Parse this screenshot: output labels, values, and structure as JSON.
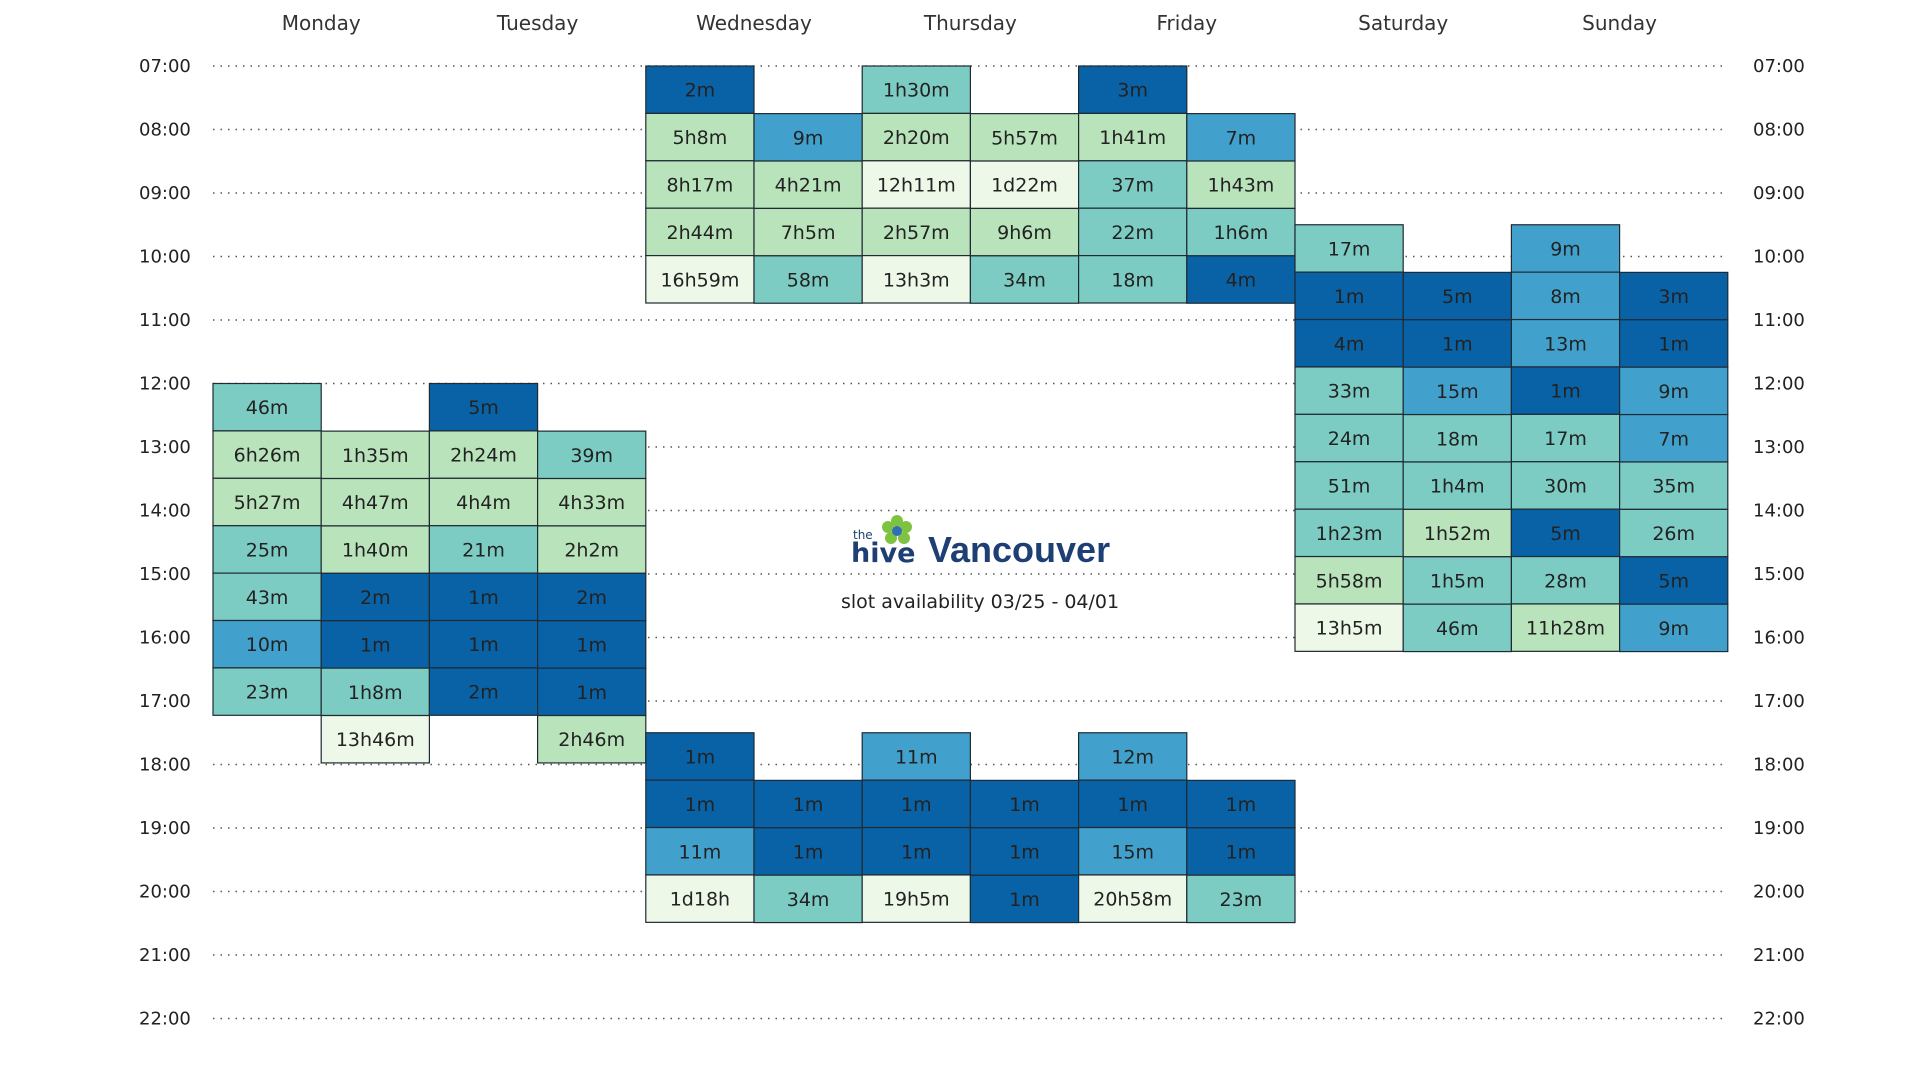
{
  "logo": {
    "the": "the",
    "hive": "hive",
    "city": "Vancouver"
  },
  "subtitle": "slot availability  03/25 - 04/01",
  "colors": {
    "available_scale": [
      "#0a62a6",
      "#41a1cc",
      "#7dccc4",
      "#b9e3bb",
      "#eef8e8"
    ],
    "border": "#1f2a33"
  },
  "chart_data": {
    "type": "heatmap",
    "title": "slot availability  03/25 - 04/01",
    "xlabel": "",
    "ylabel": "",
    "days": [
      "Monday",
      "Tuesday",
      "Wednesday",
      "Thursday",
      "Friday",
      "Saturday",
      "Sunday"
    ],
    "time_ticks": [
      "07:00",
      "08:00",
      "09:00",
      "10:00",
      "11:00",
      "12:00",
      "13:00",
      "14:00",
      "15:00",
      "16:00",
      "17:00",
      "18:00",
      "19:00",
      "20:00",
      "21:00",
      "22:00"
    ],
    "grid": true,
    "columns": [
      {
        "day": "Monday",
        "slot": 1,
        "start": "12:00",
        "blocks": [
          {
            "label": "46m",
            "level": 2
          },
          {
            "label": "6h26m",
            "level": 3
          },
          {
            "label": "5h27m",
            "level": 3
          },
          {
            "label": "25m",
            "level": 2
          },
          {
            "label": "43m",
            "level": 2
          },
          {
            "label": "10m",
            "level": 1
          },
          {
            "label": "23m",
            "level": 2
          }
        ]
      },
      {
        "day": "Monday",
        "slot": 2,
        "start": "12:45",
        "blocks": [
          {
            "label": "1h35m",
            "level": 3
          },
          {
            "label": "4h47m",
            "level": 3
          },
          {
            "label": "1h40m",
            "level": 3
          },
          {
            "label": "2m",
            "level": 0
          },
          {
            "label": "1m",
            "level": 0
          },
          {
            "label": "1h8m",
            "level": 2
          },
          {
            "label": "13h46m",
            "level": 4
          }
        ]
      },
      {
        "day": "Tuesday",
        "slot": 1,
        "start": "12:00",
        "blocks": [
          {
            "label": "5m",
            "level": 0
          },
          {
            "label": "2h24m",
            "level": 3
          },
          {
            "label": "4h4m",
            "level": 3
          },
          {
            "label": "21m",
            "level": 2
          },
          {
            "label": "1m",
            "level": 0
          },
          {
            "label": "1m",
            "level": 0
          },
          {
            "label": "2m",
            "level": 0
          }
        ]
      },
      {
        "day": "Tuesday",
        "slot": 2,
        "start": "12:45",
        "blocks": [
          {
            "label": "39m",
            "level": 2
          },
          {
            "label": "4h33m",
            "level": 3
          },
          {
            "label": "2h2m",
            "level": 3
          },
          {
            "label": "2m",
            "level": 0
          },
          {
            "label": "1m",
            "level": 0
          },
          {
            "label": "1m",
            "level": 0
          },
          {
            "label": "2h46m",
            "level": 3
          }
        ]
      },
      {
        "day": "Wednesday",
        "slot": 1,
        "start": "07:00",
        "blocks": [
          {
            "label": "2m",
            "level": 0
          },
          {
            "label": "5h8m",
            "level": 3
          },
          {
            "label": "8h17m",
            "level": 3
          },
          {
            "label": "2h44m",
            "level": 3
          },
          {
            "label": "16h59m",
            "level": 4
          }
        ]
      },
      {
        "day": "Wednesday",
        "slot": 1,
        "start": "17:30",
        "blocks": [
          {
            "label": "1m",
            "level": 0
          },
          {
            "label": "1m",
            "level": 0
          },
          {
            "label": "11m",
            "level": 1
          },
          {
            "label": "1d18h",
            "level": 4
          }
        ]
      },
      {
        "day": "Wednesday",
        "slot": 2,
        "start": "07:45",
        "blocks": [
          {
            "label": "9m",
            "level": 1
          },
          {
            "label": "4h21m",
            "level": 3
          },
          {
            "label": "7h5m",
            "level": 3
          },
          {
            "label": "58m",
            "level": 2
          }
        ]
      },
      {
        "day": "Wednesday",
        "slot": 2,
        "start": "18:15",
        "blocks": [
          {
            "label": "1m",
            "level": 0
          },
          {
            "label": "1m",
            "level": 0
          },
          {
            "label": "34m",
            "level": 2
          }
        ]
      },
      {
        "day": "Thursday",
        "slot": 1,
        "start": "07:00",
        "blocks": [
          {
            "label": "1h30m",
            "level": 2
          },
          {
            "label": "2h20m",
            "level": 3
          },
          {
            "label": "12h11m",
            "level": 4
          },
          {
            "label": "2h57m",
            "level": 3
          },
          {
            "label": "13h3m",
            "level": 4
          }
        ]
      },
      {
        "day": "Thursday",
        "slot": 1,
        "start": "17:30",
        "blocks": [
          {
            "label": "11m",
            "level": 1
          },
          {
            "label": "1m",
            "level": 0
          },
          {
            "label": "1m",
            "level": 0
          },
          {
            "label": "19h5m",
            "level": 4
          }
        ]
      },
      {
        "day": "Thursday",
        "slot": 2,
        "start": "07:45",
        "blocks": [
          {
            "label": "5h57m",
            "level": 3
          },
          {
            "label": "1d22m",
            "level": 4
          },
          {
            "label": "9h6m",
            "level": 3
          },
          {
            "label": "34m",
            "level": 2
          }
        ]
      },
      {
        "day": "Thursday",
        "slot": 2,
        "start": "18:15",
        "blocks": [
          {
            "label": "1m",
            "level": 0
          },
          {
            "label": "1m",
            "level": 0
          },
          {
            "label": "1m",
            "level": 0
          }
        ]
      },
      {
        "day": "Friday",
        "slot": 1,
        "start": "07:00",
        "blocks": [
          {
            "label": "3m",
            "level": 0
          },
          {
            "label": "1h41m",
            "level": 3
          },
          {
            "label": "37m",
            "level": 2
          },
          {
            "label": "22m",
            "level": 2
          },
          {
            "label": "18m",
            "level": 2
          }
        ]
      },
      {
        "day": "Friday",
        "slot": 1,
        "start": "17:30",
        "blocks": [
          {
            "label": "12m",
            "level": 1
          },
          {
            "label": "1m",
            "level": 0
          },
          {
            "label": "15m",
            "level": 1
          },
          {
            "label": "20h58m",
            "level": 4
          }
        ]
      },
      {
        "day": "Friday",
        "slot": 2,
        "start": "07:45",
        "blocks": [
          {
            "label": "7m",
            "level": 1
          },
          {
            "label": "1h43m",
            "level": 3
          },
          {
            "label": "1h6m",
            "level": 2
          },
          {
            "label": "4m",
            "level": 0
          }
        ]
      },
      {
        "day": "Friday",
        "slot": 2,
        "start": "18:15",
        "blocks": [
          {
            "label": "1m",
            "level": 0
          },
          {
            "label": "1m",
            "level": 0
          },
          {
            "label": "23m",
            "level": 2
          }
        ]
      },
      {
        "day": "Saturday",
        "slot": 1,
        "start": "09:30",
        "blocks": [
          {
            "label": "17m",
            "level": 2
          },
          {
            "label": "1m",
            "level": 0
          },
          {
            "label": "4m",
            "level": 0
          },
          {
            "label": "33m",
            "level": 2
          },
          {
            "label": "24m",
            "level": 2
          },
          {
            "label": "51m",
            "level": 2
          },
          {
            "label": "1h23m",
            "level": 2
          },
          {
            "label": "5h58m",
            "level": 3
          },
          {
            "label": "13h5m",
            "level": 4
          }
        ]
      },
      {
        "day": "Saturday",
        "slot": 2,
        "start": "10:15",
        "blocks": [
          {
            "label": "5m",
            "level": 0
          },
          {
            "label": "1m",
            "level": 0
          },
          {
            "label": "15m",
            "level": 1
          },
          {
            "label": "18m",
            "level": 2
          },
          {
            "label": "1h4m",
            "level": 2
          },
          {
            "label": "1h52m",
            "level": 3
          },
          {
            "label": "1h5m",
            "level": 2
          },
          {
            "label": "46m",
            "level": 2
          }
        ]
      },
      {
        "day": "Sunday",
        "slot": 1,
        "start": "09:30",
        "blocks": [
          {
            "label": "9m",
            "level": 1
          },
          {
            "label": "8m",
            "level": 1
          },
          {
            "label": "13m",
            "level": 1
          },
          {
            "label": "1m",
            "level": 0
          },
          {
            "label": "17m",
            "level": 2
          },
          {
            "label": "30m",
            "level": 2
          },
          {
            "label": "5m",
            "level": 0
          },
          {
            "label": "28m",
            "level": 2
          },
          {
            "label": "11h28m",
            "level": 3
          }
        ]
      },
      {
        "day": "Sunday",
        "slot": 2,
        "start": "10:15",
        "blocks": [
          {
            "label": "3m",
            "level": 0
          },
          {
            "label": "1m",
            "level": 0
          },
          {
            "label": "9m",
            "level": 1
          },
          {
            "label": "7m",
            "level": 1
          },
          {
            "label": "35m",
            "level": 2
          },
          {
            "label": "26m",
            "level": 2
          },
          {
            "label": "5m",
            "level": 0
          },
          {
            "label": "9m",
            "level": 1
          }
        ]
      }
    ]
  }
}
